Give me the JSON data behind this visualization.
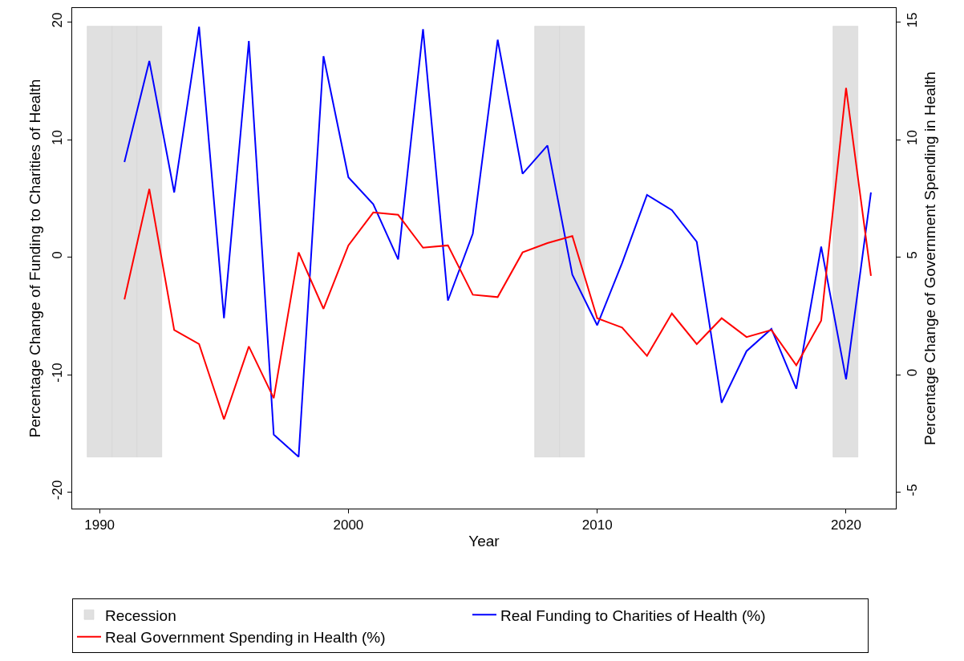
{
  "chart_data": {
    "type": "line",
    "xlabel": "Year",
    "ylabel": "Percentage Change of Funding to Charities of Health",
    "y2label": "Percentage Change of Government Spending in Health",
    "x": [
      1991,
      1992,
      1993,
      1994,
      1995,
      1996,
      1997,
      1998,
      1999,
      2000,
      2001,
      2002,
      2003,
      2004,
      2005,
      2006,
      2007,
      2008,
      2009,
      2010,
      2011,
      2012,
      2013,
      2014,
      2015,
      2016,
      2017,
      2018,
      2019,
      2020,
      2021
    ],
    "series": [
      {
        "name": "Recession",
        "type": "bar",
        "color": "#e0e0e0",
        "x": [
          1990,
          1991,
          1992,
          2008,
          2009,
          2020
        ],
        "base": [
          -17,
          -17,
          -17,
          -17,
          -17,
          -17
        ],
        "values": [
          36.6,
          36.6,
          36.6,
          36.6,
          36.6,
          36.6
        ]
      },
      {
        "name": "Real Funding to Charities of Health (%)",
        "color": "#0000ff",
        "values": [
          8.1,
          16.7,
          5.5,
          19.6,
          -5.2,
          18.4,
          -15.1,
          -17.0,
          17.1,
          6.8,
          4.5,
          -0.2,
          19.4,
          -3.7,
          2.0,
          18.5,
          7.1,
          9.5,
          -1.5,
          -5.8,
          -0.5,
          5.3,
          4.0,
          1.3,
          -12.4,
          -8.0,
          -6.1,
          -11.2,
          0.9,
          -10.4,
          5.5
        ]
      },
      {
        "name": "Real Government Spending in Health (%)",
        "color": "#ff0000",
        "axis": "y2",
        "values": [
          3.2,
          7.9,
          1.9,
          1.3,
          -1.9,
          1.2,
          -1.0,
          5.2,
          2.8,
          5.5,
          6.9,
          6.8,
          5.4,
          5.5,
          3.4,
          3.3,
          5.2,
          5.6,
          5.9,
          2.4,
          2.0,
          0.8,
          2.6,
          1.3,
          2.4,
          1.6,
          1.9,
          0.4,
          2.3,
          12.2,
          4.2
        ]
      }
    ],
    "xlim": [
      1988.9,
      2022.0
    ],
    "xticks": [
      1990,
      2000,
      2010,
      2020
    ],
    "ylim": [
      -21.4,
      21.2
    ],
    "yticks": [
      -20,
      -10,
      0,
      10,
      20
    ],
    "y2lim": [
      -5.7,
      15.6
    ],
    "y2ticks": [
      -5,
      0,
      5,
      10,
      15
    ],
    "legend": "bottom",
    "marker": "none",
    "line_style": "solid"
  }
}
